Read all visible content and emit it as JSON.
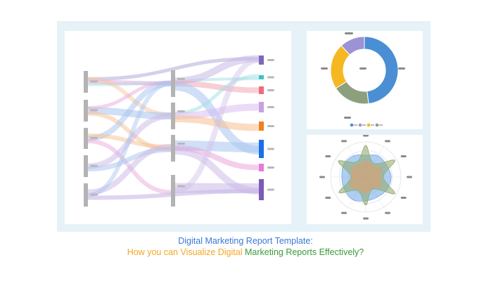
{
  "caption": {
    "line1": "Digital Marketing Report Template:",
    "line2_part1": "How you can Visualize Digital",
    "line2_part2": "Marketing Reports Effectively?"
  },
  "colors": {
    "frame": "#e6f2f8",
    "caption_blue": "#3a78d6",
    "caption_orange": "#f5a623",
    "caption_green": "#3a9a3a"
  },
  "donut": {
    "slices": [
      {
        "color": "#4a8fd4",
        "value": 48
      },
      {
        "color": "#8da07e",
        "value": 18
      },
      {
        "color": "#f5b820",
        "value": 22
      },
      {
        "color": "#9b93d4",
        "value": 12
      }
    ],
    "legend_colors": [
      "#4a8fd4",
      "#9b93d4",
      "#f5b820",
      "#8da07e"
    ]
  },
  "radar": {
    "axes": 12,
    "series": [
      {
        "color": "#6ea6e8",
        "values": [
          0.62,
          0.7,
          0.68,
          0.72,
          0.7,
          0.66,
          0.68,
          0.74,
          0.7,
          0.68,
          0.72,
          0.7
        ]
      },
      {
        "color": "#8faa6a",
        "values": [
          0.9,
          0.45,
          0.95,
          0.5,
          0.95,
          0.4,
          0.8,
          0.45,
          0.88,
          0.42,
          0.9,
          0.5
        ]
      },
      {
        "color": "#e39a6a",
        "values": [
          0.45,
          0.38,
          0.48,
          0.4,
          0.5,
          0.36,
          0.44,
          0.4,
          0.5,
          0.38,
          0.46,
          0.4
        ]
      }
    ]
  },
  "sankey": {
    "left_colors": [
      "#b3b3b3",
      "#b3b3b3",
      "#b3b3b3",
      "#b3b3b3",
      "#b3b3b3"
    ],
    "mid_colors": [
      "#b3b3b3",
      "#b3b3b3",
      "#b3b3b3",
      "#b3b3b3"
    ],
    "right_colors": [
      "#7b68b8",
      "#3fc1c9",
      "#f06b7a",
      "#c8a2e0",
      "#f08020",
      "#1a6fe8",
      "#e87ad6",
      "#7b5ab8"
    ]
  }
}
